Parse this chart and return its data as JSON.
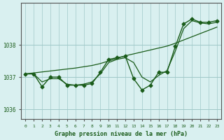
{
  "xlabel": "Graphe pression niveau de la mer (hPa)",
  "x_ticks": [
    0,
    1,
    2,
    3,
    4,
    5,
    6,
    7,
    8,
    9,
    10,
    11,
    12,
    13,
    14,
    15,
    16,
    17,
    18,
    19,
    20,
    21,
    22,
    23
  ],
  "ylim": [
    1035.7,
    1039.3
  ],
  "yticks": [
    1036,
    1037,
    1038
  ],
  "bg_color": "#d9f0f0",
  "grid_color": "#a0c8c8",
  "line_color": "#1a5c1a",
  "series1": [
    1037.1,
    1037.1,
    1036.7,
    1037.0,
    1037.0,
    1036.75,
    1036.75,
    1036.75,
    1036.8,
    1037.15,
    1037.55,
    1037.6,
    1037.65,
    1036.95,
    1036.6,
    1036.75,
    1037.15,
    1037.15,
    1037.95,
    1038.65,
    1038.8,
    1038.7,
    1038.7,
    1038.75
  ],
  "trend_line": [
    1037.1,
    1037.13,
    1037.16,
    1037.19,
    1037.22,
    1037.25,
    1037.28,
    1037.32,
    1037.36,
    1037.42,
    1037.5,
    1037.58,
    1037.66,
    1037.72,
    1037.78,
    1037.84,
    1037.9,
    1037.96,
    1038.05,
    1038.15,
    1038.25,
    1038.35,
    1038.45,
    1038.55
  ],
  "smooth_line": [
    1037.1,
    1037.1,
    1036.85,
    1036.95,
    1036.95,
    1036.78,
    1036.75,
    1036.78,
    1036.85,
    1037.1,
    1037.45,
    1037.55,
    1037.6,
    1037.45,
    1037.0,
    1036.85,
    1037.05,
    1037.2,
    1037.8,
    1038.5,
    1038.75,
    1038.68,
    1038.65,
    1038.7
  ]
}
